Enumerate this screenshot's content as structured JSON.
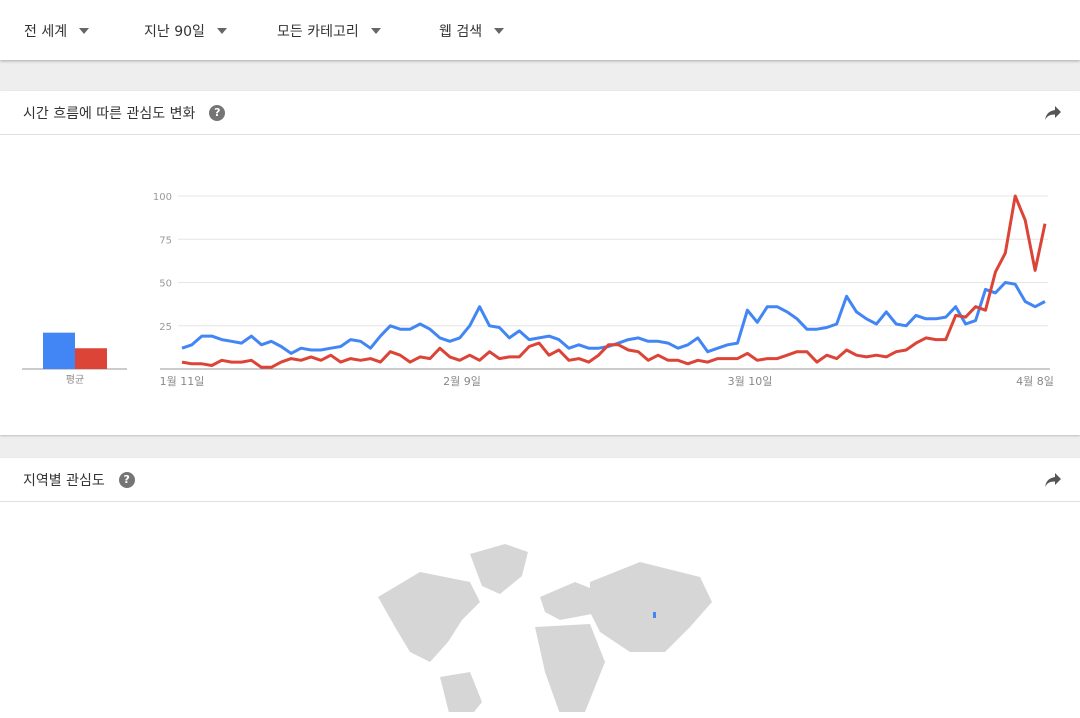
{
  "filters": [
    {
      "label": "전 세계"
    },
    {
      "label": "지난 90일"
    },
    {
      "label": "모든 카테고리"
    },
    {
      "label": "웹 검색"
    }
  ],
  "interest_over_time": {
    "title": "시간 흐름에 따른 관심도 변화",
    "help_icon": "question-circle-icon",
    "share_icon": "share-arrow-icon"
  },
  "interest_by_region": {
    "title": "지역별 관심도",
    "help_icon": "question-circle-icon",
    "share_icon": "share-arrow-icon"
  },
  "chart_data": {
    "type": "line",
    "ylim": [
      0,
      100
    ],
    "yticks": [
      "100",
      "75",
      "50",
      "25"
    ],
    "xticks": [
      "1월 11일",
      "2월 9일",
      "3월 10일",
      "4월 8일"
    ],
    "grid": true,
    "average_label": "평균",
    "averages": [
      21,
      12
    ],
    "series": [
      {
        "color": "#4285f4",
        "values": [
          12,
          14,
          19,
          19,
          17,
          16,
          15,
          19,
          14,
          16,
          13,
          9,
          12,
          11,
          11,
          12,
          13,
          17,
          16,
          12,
          19,
          25,
          23,
          23,
          26,
          23,
          18,
          16,
          18,
          25,
          36,
          25,
          24,
          18,
          22,
          17,
          18,
          19,
          17,
          12,
          14,
          12,
          12,
          13,
          15,
          17,
          18,
          16,
          16,
          15,
          12,
          14,
          18,
          10,
          12,
          14,
          15,
          34,
          27,
          36,
          36,
          33,
          29,
          23,
          23,
          24,
          26,
          42,
          33,
          29,
          26,
          33,
          26,
          25,
          31,
          29,
          29,
          30,
          36,
          26,
          28,
          46,
          44,
          50,
          49,
          39,
          36,
          39
        ]
      },
      {
        "color": "#db4437",
        "values": [
          4,
          3,
          3,
          2,
          5,
          4,
          4,
          5,
          1,
          1,
          4,
          6,
          5,
          7,
          5,
          8,
          4,
          6,
          5,
          6,
          4,
          10,
          8,
          4,
          7,
          6,
          12,
          7,
          5,
          8,
          5,
          10,
          6,
          7,
          7,
          13,
          15,
          8,
          11,
          5,
          6,
          4,
          8,
          14,
          14,
          11,
          10,
          5,
          8,
          5,
          5,
          3,
          5,
          4,
          6,
          6,
          6,
          9,
          5,
          6,
          6,
          8,
          10,
          10,
          4,
          8,
          6,
          11,
          8,
          7,
          8,
          7,
          10,
          11,
          15,
          18,
          17,
          17,
          31,
          30,
          36,
          34,
          56,
          67,
          100,
          86,
          57,
          84
        ]
      }
    ]
  }
}
